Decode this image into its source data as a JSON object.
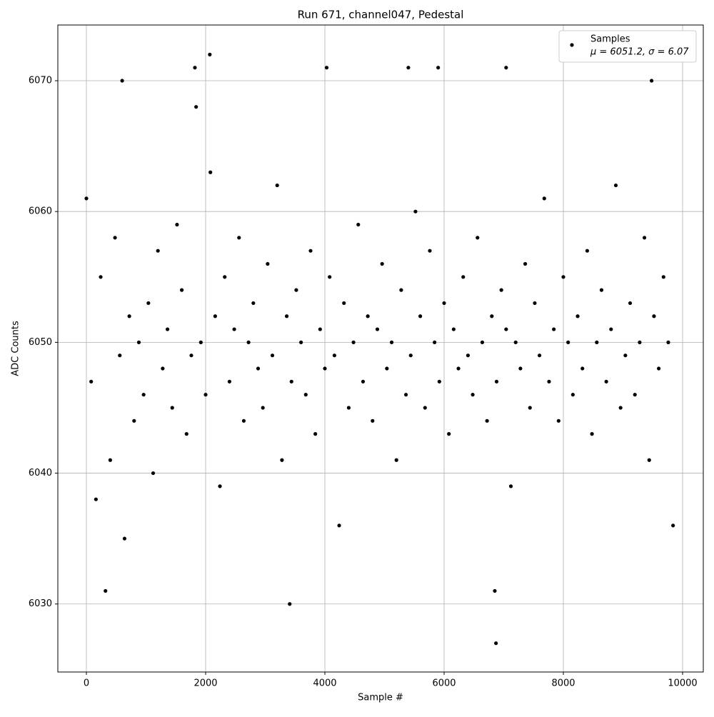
{
  "chart_data": {
    "type": "scatter",
    "title": "Run 671, channel047, Pedestal",
    "x_label": "Sample #",
    "y_label": "ADC Counts",
    "xlim": [
      -479,
      10347
    ],
    "ylim": [
      6024.8,
      6074.26
    ],
    "xticks": [
      0,
      2000,
      4000,
      6000,
      8000,
      10000
    ],
    "yticks": [
      6030,
      6040,
      6050,
      6060,
      6070
    ],
    "grid": true,
    "legend": "upper right",
    "annotation": "μ = 6051.2, σ = 6.07",
    "series": [
      {
        "name": "Samples",
        "color": "#000000",
        "x": [
          0,
          80,
          160,
          240,
          320,
          400,
          480,
          560,
          640,
          720,
          800,
          880,
          960,
          1040,
          1120,
          1200,
          1280,
          1360,
          1440,
          1520,
          1600,
          1680,
          1760,
          1840,
          1920,
          2000,
          2080,
          2160,
          2240,
          2320,
          2400,
          2480,
          2560,
          2640,
          2720,
          2800,
          2880,
          2960,
          3040,
          3120,
          3200,
          3280,
          3360,
          3440,
          3520,
          3600,
          3680,
          3760,
          3840,
          3920,
          4000,
          4080,
          4160,
          4240,
          4320,
          4400,
          4480,
          4560,
          4640,
          4720,
          4800,
          4880,
          4960,
          5040,
          5120,
          5200,
          5280,
          5360,
          5440,
          5520,
          5600,
          5680,
          5760,
          5840,
          5920,
          6000,
          6080,
          6160,
          6240,
          6320,
          6400,
          6480,
          6560,
          6640,
          6720,
          6800,
          6880,
          6960,
          7040,
          7120,
          7200,
          7280,
          7360,
          7440,
          7520,
          7600,
          7680,
          7760,
          7840,
          7920,
          8000,
          8080,
          8160,
          8240,
          8320,
          8400,
          8480,
          8560,
          8640,
          8720,
          8800,
          8880,
          8960,
          9040,
          9120,
          9200,
          9280,
          9360,
          9440,
          9520,
          9600,
          9680,
          9760,
          9840,
          600,
          2070,
          1820,
          3410,
          4030,
          5400,
          5900,
          6870,
          6850,
          7040,
          9480
        ],
        "values": [
          6061,
          6047,
          6038,
          6055,
          6031,
          6041,
          6058,
          6049,
          6035,
          6052,
          6044,
          6050,
          6046,
          6053,
          6040,
          6057,
          6048,
          6051,
          6045,
          6059,
          6054,
          6043,
          6049,
          6068,
          6050,
          6046,
          6063,
          6052,
          6039,
          6055,
          6047,
          6051,
          6058,
          6044,
          6050,
          6053,
          6048,
          6045,
          6056,
          6049,
          6062,
          6041,
          6052,
          6047,
          6054,
          6050,
          6046,
          6057,
          6043,
          6051,
          6048,
          6055,
          6049,
          6036,
          6053,
          6045,
          6050,
          6059,
          6047,
          6052,
          6044,
          6051,
          6056,
          6048,
          6050,
          6041,
          6054,
          6046,
          6049,
          6060,
          6052,
          6045,
          6057,
          6050,
          6047,
          6053,
          6043,
          6051,
          6048,
          6055,
          6049,
          6046,
          6058,
          6050,
          6044,
          6052,
          6047,
          6054,
          6051,
          6039,
          6050,
          6048,
          6056,
          6045,
          6053,
          6049,
          6061,
          6047,
          6051,
          6044,
          6055,
          6050,
          6046,
          6052,
          6048,
          6057,
          6043,
          6050,
          6054,
          6047,
          6051,
          6062,
          6045,
          6049,
          6053,
          6046,
          6050,
          6058,
          6041,
          6052,
          6048,
          6055,
          6050,
          6036,
          6070,
          6072,
          6071,
          6030,
          6071,
          6071,
          6071,
          6027,
          6031,
          6071,
          6070
        ]
      }
    ]
  }
}
